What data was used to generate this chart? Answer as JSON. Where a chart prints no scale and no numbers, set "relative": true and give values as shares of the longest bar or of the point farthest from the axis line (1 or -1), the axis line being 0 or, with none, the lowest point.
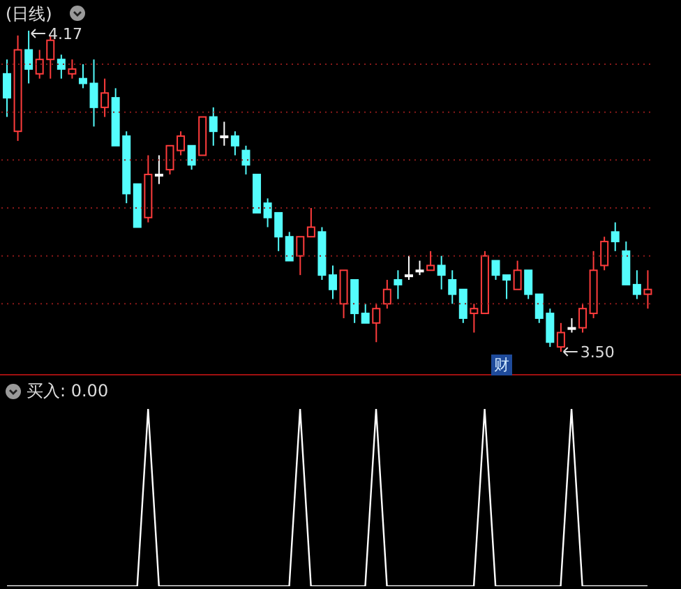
{
  "chart_data": [
    {
      "type": "candlestick",
      "title": "(日线)",
      "tick_labels": false,
      "grid": "y",
      "categories": [
        null,
        null,
        null,
        null,
        null,
        null,
        null,
        null,
        null,
        null,
        null,
        null,
        null,
        null,
        null,
        null,
        null,
        null,
        null,
        null,
        null,
        null,
        null,
        null,
        null,
        null,
        null,
        null,
        null,
        null,
        null,
        null,
        null,
        null,
        null,
        null,
        null,
        null,
        null,
        null,
        null,
        null,
        null,
        null,
        null,
        null,
        null,
        null,
        null,
        null,
        null,
        null,
        null,
        null,
        null,
        null,
        null,
        null,
        null,
        null
      ],
      "ohlc": [
        [
          4.08,
          4.11,
          3.99,
          4.03
        ],
        [
          3.96,
          4.16,
          3.94,
          4.13
        ],
        [
          4.13,
          4.17,
          4.06,
          4.09
        ],
        [
          4.08,
          4.13,
          4.07,
          4.11
        ],
        [
          4.11,
          4.16,
          4.07,
          4.15
        ],
        [
          4.11,
          4.12,
          4.07,
          4.09
        ],
        [
          4.08,
          4.11,
          4.07,
          4.09
        ],
        [
          4.07,
          4.1,
          4.05,
          4.06
        ],
        [
          4.06,
          4.11,
          3.97,
          4.01
        ],
        [
          4.01,
          4.07,
          3.99,
          4.04
        ],
        [
          4.03,
          4.05,
          3.93,
          3.93
        ],
        [
          3.95,
          3.96,
          3.81,
          3.83
        ],
        [
          3.85,
          3.85,
          3.76,
          3.76
        ],
        [
          3.78,
          3.91,
          3.77,
          3.87
        ],
        [
          3.87,
          3.91,
          3.85,
          3.87
        ],
        [
          3.88,
          3.93,
          3.87,
          3.93
        ],
        [
          3.92,
          3.96,
          3.91,
          3.95
        ],
        [
          3.93,
          3.93,
          3.88,
          3.89
        ],
        [
          3.91,
          3.99,
          3.91,
          3.99
        ],
        [
          3.99,
          4.01,
          3.93,
          3.96
        ],
        [
          3.95,
          3.98,
          3.93,
          3.95
        ],
        [
          3.95,
          3.96,
          3.91,
          3.93
        ],
        [
          3.92,
          3.93,
          3.87,
          3.89
        ],
        [
          3.87,
          3.87,
          3.79,
          3.79
        ],
        [
          3.81,
          3.82,
          3.76,
          3.78
        ],
        [
          3.79,
          3.79,
          3.71,
          3.74
        ],
        [
          3.74,
          3.75,
          3.69,
          3.69
        ],
        [
          3.7,
          3.74,
          3.66,
          3.74
        ],
        [
          3.74,
          3.8,
          3.74,
          3.76
        ],
        [
          3.75,
          3.76,
          3.65,
          3.66
        ],
        [
          3.66,
          3.68,
          3.61,
          3.63
        ],
        [
          3.6,
          3.67,
          3.57,
          3.67
        ],
        [
          3.65,
          3.65,
          3.56,
          3.58
        ],
        [
          3.58,
          3.6,
          3.56,
          3.56
        ],
        [
          3.56,
          3.6,
          3.52,
          3.59
        ],
        [
          3.6,
          3.65,
          3.59,
          3.63
        ],
        [
          3.65,
          3.67,
          3.61,
          3.64
        ],
        [
          3.66,
          3.7,
          3.65,
          3.66
        ],
        [
          3.67,
          3.69,
          3.66,
          3.67
        ],
        [
          3.67,
          3.71,
          3.67,
          3.68
        ],
        [
          3.68,
          3.7,
          3.63,
          3.66
        ],
        [
          3.65,
          3.67,
          3.6,
          3.62
        ],
        [
          3.63,
          3.63,
          3.56,
          3.57
        ],
        [
          3.58,
          3.6,
          3.54,
          3.59
        ],
        [
          3.58,
          3.71,
          3.58,
          3.7
        ],
        [
          3.69,
          3.69,
          3.65,
          3.66
        ],
        [
          3.66,
          3.66,
          3.61,
          3.65
        ],
        [
          3.63,
          3.69,
          3.63,
          3.67
        ],
        [
          3.67,
          3.67,
          3.61,
          3.62
        ],
        [
          3.62,
          3.62,
          3.56,
          3.57
        ],
        [
          3.58,
          3.59,
          3.51,
          3.52
        ],
        [
          3.51,
          3.56,
          3.5,
          3.54
        ],
        [
          3.55,
          3.57,
          3.54,
          3.55
        ],
        [
          3.55,
          3.6,
          3.54,
          3.59
        ],
        [
          3.58,
          3.71,
          3.57,
          3.67
        ],
        [
          3.68,
          3.74,
          3.67,
          3.73
        ],
        [
          3.75,
          3.77,
          3.71,
          3.73
        ],
        [
          3.71,
          3.73,
          3.64,
          3.64
        ],
        [
          3.64,
          3.67,
          3.61,
          3.62
        ],
        [
          3.62,
          3.67,
          3.59,
          3.63
        ]
      ],
      "colors": [
        "#54fcfc",
        "#ff3c3c",
        "#54fcfc",
        "#ff3c3c",
        "#ff3c3c",
        "#54fcfc",
        "#ff3c3c",
        "#54fcfc",
        "#54fcfc",
        "#ff3c3c",
        "#54fcfc",
        "#54fcfc",
        "#54fcfc",
        "#ff3c3c",
        "#ffffff",
        "#ff3c3c",
        "#ff3c3c",
        "#54fcfc",
        "#ff3c3c",
        "#54fcfc",
        "#ffffff",
        "#54fcfc",
        "#54fcfc",
        "#54fcfc",
        "#54fcfc",
        "#54fcfc",
        "#54fcfc",
        "#ff3c3c",
        "#ff3c3c",
        "#54fcfc",
        "#54fcfc",
        "#ff3c3c",
        "#54fcfc",
        "#54fcfc",
        "#ff3c3c",
        "#ff3c3c",
        "#54fcfc",
        "#ffffff",
        "#ffffff",
        "#ff3c3c",
        "#54fcfc",
        "#54fcfc",
        "#54fcfc",
        "#ff3c3c",
        "#ff3c3c",
        "#54fcfc",
        "#54fcfc",
        "#ff3c3c",
        "#54fcfc",
        "#54fcfc",
        "#54fcfc",
        "#ff3c3c",
        "#ffffff",
        "#ff3c3c",
        "#ff3c3c",
        "#ff3c3c",
        "#54fcfc",
        "#54fcfc",
        "#54fcfc",
        "#ff3c3c"
      ],
      "yticks": [
        {
          "value": 3.6,
          "label": null
        },
        {
          "value": 3.7,
          "label": null
        },
        {
          "value": 3.8,
          "label": null
        },
        {
          "value": 3.9,
          "label": null
        },
        {
          "value": 4.0,
          "label": null
        },
        {
          "value": 4.1,
          "label": null
        }
      ],
      "annotations": [
        "4.17",
        "3.50",
        "财"
      ]
    },
    {
      "type": "line",
      "title": "买入: 0.00",
      "relative": true,
      "tick_labels": false,
      "categories": [
        null,
        null,
        null,
        null,
        null,
        null,
        null,
        null,
        null,
        null,
        null,
        null,
        null,
        null,
        null,
        null,
        null,
        null,
        null,
        null,
        null,
        null,
        null,
        null,
        null,
        null,
        null,
        null,
        null,
        null,
        null,
        null,
        null,
        null,
        null,
        null,
        null,
        null,
        null,
        null,
        null,
        null,
        null,
        null,
        null,
        null,
        null,
        null,
        null,
        null,
        null,
        null,
        null,
        null,
        null,
        null,
        null,
        null,
        null,
        null
      ],
      "color": "#ffffff",
      "values": [
        0,
        0,
        0,
        0,
        0,
        0,
        0,
        0,
        0,
        0,
        0,
        0,
        0,
        1,
        0,
        0,
        0,
        0,
        0,
        0,
        0,
        0,
        0,
        0,
        0,
        0,
        0,
        1,
        0,
        0,
        0,
        0,
        0,
        0,
        1,
        0,
        0,
        0,
        0,
        0,
        0,
        0,
        0,
        0,
        1,
        0,
        0,
        0,
        0,
        0,
        0,
        0,
        1,
        0,
        0,
        0,
        0,
        0,
        0,
        0
      ]
    }
  ]
}
